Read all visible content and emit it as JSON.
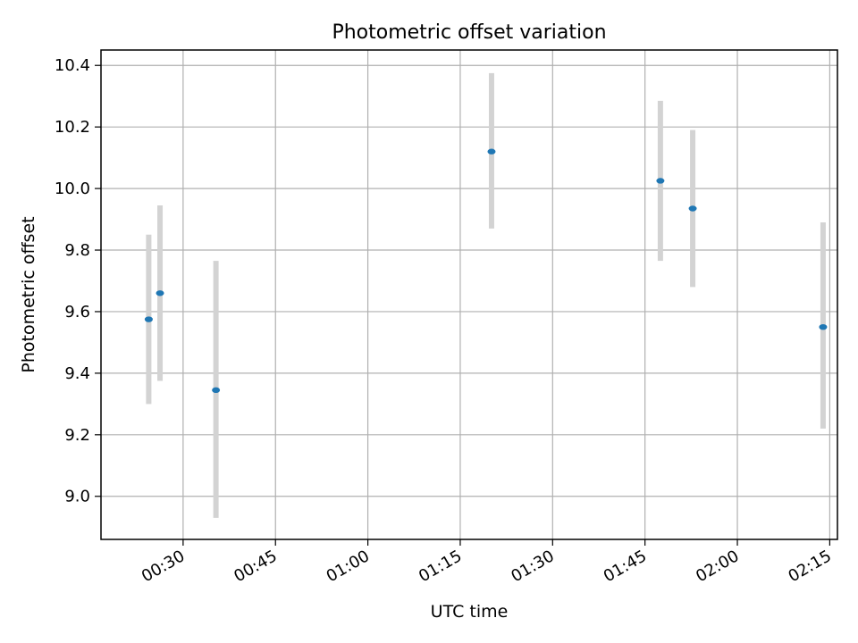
{
  "chart_data": {
    "type": "scatter",
    "title": "Photometric offset variation",
    "xlabel": "UTC time",
    "ylabel": "Photometric offset",
    "xlim": [
      "00:16:40",
      "02:16:15"
    ],
    "ylim": [
      8.86,
      10.45
    ],
    "x_ticks": [
      "00:30",
      "00:45",
      "01:00",
      "01:15",
      "01:30",
      "01:45",
      "02:00",
      "02:15"
    ],
    "y_ticks": [
      "9.0",
      "9.2",
      "9.4",
      "9.6",
      "9.8",
      "10.0",
      "10.2",
      "10.4"
    ],
    "grid": true,
    "error_bars": true,
    "points": [
      {
        "x": "00:24:25",
        "y": 9.575,
        "err_low": 9.3,
        "err_high": 9.85
      },
      {
        "x": "00:26:15",
        "y": 9.66,
        "err_low": 9.375,
        "err_high": 9.945
      },
      {
        "x": "00:35:20",
        "y": 9.345,
        "err_low": 8.93,
        "err_high": 9.765
      },
      {
        "x": "01:20:05",
        "y": 10.12,
        "err_low": 9.87,
        "err_high": 10.375
      },
      {
        "x": "01:47:30",
        "y": 10.025,
        "err_low": 9.765,
        "err_high": 10.285
      },
      {
        "x": "01:52:45",
        "y": 9.935,
        "err_low": 9.68,
        "err_high": 10.19
      },
      {
        "x": "02:13:55",
        "y": 9.55,
        "err_low": 9.22,
        "err_high": 9.89
      }
    ],
    "colors": {
      "marker": "#1f77b4",
      "error_bar": "#d3d3d3",
      "grid": "#b0b0b0",
      "axes": "#000000"
    }
  }
}
